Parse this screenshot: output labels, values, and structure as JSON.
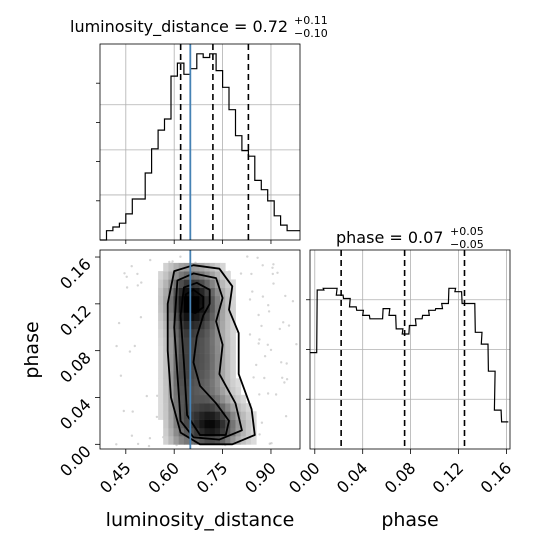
{
  "chart_data": [
    {
      "type": "histogram",
      "panel": "luminosity_distance-marginal",
      "title": {
        "prefix": "luminosity_distance = 0.72",
        "sup": "+0.11",
        "sub": "−0.10"
      },
      "xlim": [
        0.37,
        0.99
      ],
      "bins_left_edge": [
        0.37,
        0.39,
        0.41,
        0.43,
        0.45,
        0.47,
        0.49,
        0.51,
        0.53,
        0.55,
        0.57,
        0.59,
        0.61,
        0.63,
        0.65,
        0.67,
        0.69,
        0.71,
        0.73,
        0.75,
        0.77,
        0.79,
        0.81,
        0.83,
        0.85,
        0.87,
        0.89,
        0.91,
        0.93,
        0.95,
        0.97
      ],
      "bin_width": 0.02,
      "density_fraction": [
        0.0,
        0.05,
        0.07,
        0.09,
        0.14,
        0.22,
        0.22,
        0.36,
        0.49,
        0.59,
        0.65,
        0.88,
        0.95,
        0.89,
        0.92,
        1.0,
        0.98,
        1.0,
        0.91,
        0.82,
        0.7,
        0.56,
        0.48,
        0.45,
        0.32,
        0.27,
        0.21,
        0.13,
        0.08,
        0.05,
        0.05
      ],
      "quantiles": [
        0.62,
        0.72,
        0.83
      ],
      "truth": 0.65
    },
    {
      "type": "histogram",
      "panel": "phase-marginal",
      "title": {
        "prefix": "phase = 0.07",
        "sup": "+0.05",
        "sub": "−0.05"
      },
      "xlim": [
        -0.004,
        0.163
      ],
      "bins_left_edge": [
        -0.004,
        0.002,
        0.007,
        0.013,
        0.018,
        0.024,
        0.029,
        0.035,
        0.04,
        0.046,
        0.051,
        0.057,
        0.062,
        0.068,
        0.073,
        0.079,
        0.084,
        0.09,
        0.095,
        0.101,
        0.106,
        0.112,
        0.117,
        0.123,
        0.128,
        0.134,
        0.139,
        0.145,
        0.15,
        0.156
      ],
      "bin_width": 0.0056,
      "density_fraction": [
        0.57,
        0.94,
        0.95,
        0.95,
        0.91,
        0.89,
        0.84,
        0.82,
        0.79,
        0.77,
        0.77,
        0.83,
        0.79,
        0.71,
        0.68,
        0.73,
        0.77,
        0.79,
        0.82,
        0.83,
        0.86,
        0.95,
        0.93,
        0.86,
        0.86,
        0.69,
        0.62,
        0.46,
        0.23,
        0.16
      ],
      "quantiles": [
        0.022,
        0.075,
        0.125
      ]
    },
    {
      "type": "2d-density",
      "panel": "phase-vs-luminosity_distance",
      "xlabel": "luminosity_distance",
      "ylabel": "phase",
      "xlim": [
        0.37,
        0.99
      ],
      "ylim": [
        -0.004,
        0.166
      ],
      "xticks": [
        "0.45",
        "0.60",
        "0.75",
        "0.90"
      ],
      "yticks": [
        "0.00",
        "0.04",
        "0.08",
        "0.12",
        "0.16"
      ],
      "truth_x": 0.65,
      "contour_levels": [
        0.12,
        0.39,
        0.68,
        0.86
      ],
      "high_density_regions": [
        {
          "x": 0.66,
          "y": 0.125
        },
        {
          "x": 0.72,
          "y": 0.015
        }
      ]
    }
  ],
  "phase_xlabel": "phase",
  "phase_xticks": [
    "0.00",
    "0.04",
    "0.08",
    "0.12",
    "0.16"
  ],
  "colors": {
    "truth": "#4682b4",
    "line": "#000000",
    "grid": "#b0b0b0"
  }
}
